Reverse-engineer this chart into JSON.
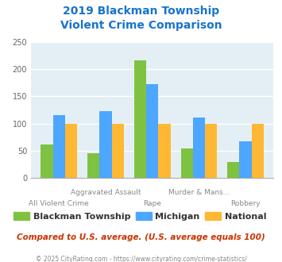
{
  "title": "2019 Blackman Township\nViolent Crime Comparison",
  "title_color": "#1874cd",
  "blackman": [
    62,
    46,
    216,
    55,
    29
  ],
  "michigan": [
    116,
    123,
    172,
    112,
    67
  ],
  "national": [
    100,
    100,
    100,
    100,
    100
  ],
  "color_blackman": "#7fc241",
  "color_michigan": "#4da6ff",
  "color_national": "#ffb833",
  "ylim": [
    0,
    250
  ],
  "yticks": [
    0,
    50,
    100,
    150,
    200,
    250
  ],
  "plot_bg": "#e4eff5",
  "legend_labels": [
    "Blackman Township",
    "Michigan",
    "National"
  ],
  "top_labels": [
    "",
    "Aggravated Assault",
    "",
    "Murder & Mans...",
    ""
  ],
  "bot_labels": [
    "All Violent Crime",
    "",
    "Rape",
    "",
    "Robbery"
  ],
  "note": "Compared to U.S. average. (U.S. average equals 100)",
  "note_color": "#cc3300",
  "footer": "© 2025 CityRating.com - https://www.cityrating.com/crime-statistics/",
  "footer_color": "#888888",
  "bar_width": 0.26
}
